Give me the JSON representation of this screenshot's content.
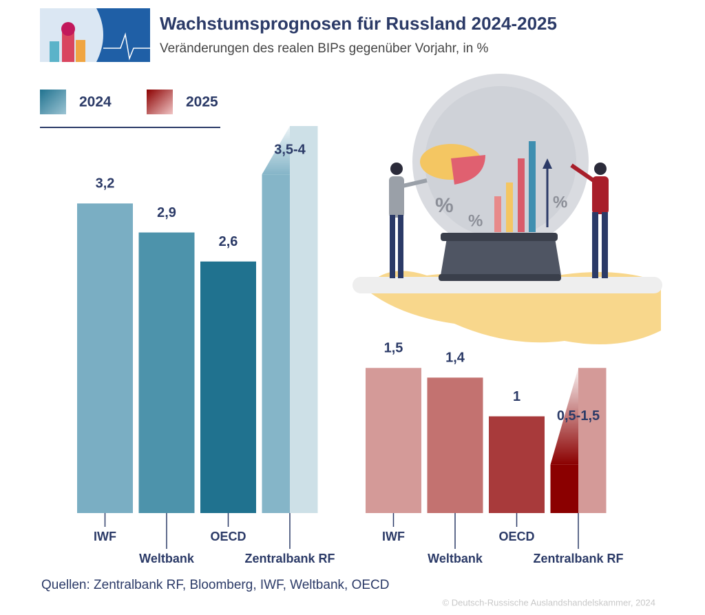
{
  "chart_data": {
    "type": "bar",
    "title": "Wachstumsprognosen für Russland 2024-2025",
    "subtitle": "Veränderungen des realen BIPs gegenüber Vorjahr, in %",
    "categories": [
      "IWF",
      "Weltbank",
      "OECD",
      "Zentralbank RF"
    ],
    "series": [
      {
        "name": "2024",
        "color": "#4d93ab",
        "colors": [
          "#7aaec3",
          "#4d93ab",
          "#20728f",
          "#85b5c8"
        ],
        "range_color": "#cde0e7",
        "values": [
          3.2,
          2.9,
          2.6,
          3.5
        ],
        "upper": [
          null,
          null,
          null,
          4
        ],
        "value_labels": [
          "3,2",
          "2,9",
          "2,6",
          "3,5-4"
        ]
      },
      {
        "name": "2025",
        "color": "#a83a3b",
        "colors": [
          "#d49a98",
          "#c37270",
          "#a83a3b",
          "#8b0000"
        ],
        "range_color": "#d49a98",
        "values": [
          1.5,
          1.4,
          1,
          0.5
        ],
        "upper": [
          null,
          null,
          null,
          1.5
        ],
        "value_labels": [
          "1,5",
          "1,4",
          "1",
          "0,5-1,5"
        ]
      }
    ],
    "source": "Quellen: Zentralbank RF, Bloomberg, IWF, Weltbank, OECD",
    "copyright": "© Deutsch-Russische Auslandshandelskammer, 2024"
  }
}
